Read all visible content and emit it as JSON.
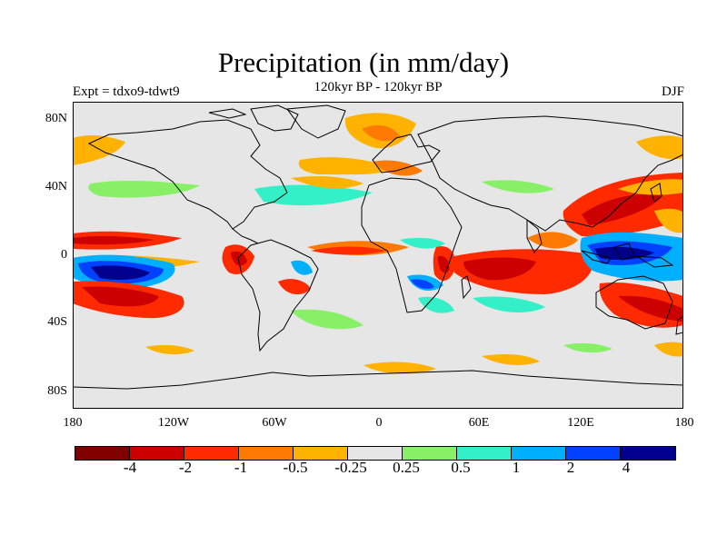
{
  "title": "Precipitation (in mm/day)",
  "subtitle": "120kyr BP - 120kyr BP",
  "experiment": "Expt = tdxo9-tdwt9",
  "season": "DJF",
  "y_ticks": [
    "80N",
    "40N",
    "0",
    "40S",
    "80S"
  ],
  "x_ticks": [
    "180",
    "120W",
    "60W",
    "0",
    "60E",
    "120E",
    "180"
  ],
  "colorbar": {
    "colors": [
      "#800000",
      "#cc0000",
      "#ff2a00",
      "#ff7a00",
      "#ffb300",
      "#e6e6e6",
      "#88f066",
      "#33f0c8",
      "#00b0ff",
      "#0040ff",
      "#00008c"
    ],
    "labels": [
      "-4",
      "-2",
      "-1",
      "-0.5",
      "-0.25",
      "0.25",
      "0.5",
      "1",
      "2",
      "4"
    ]
  },
  "map_colors": {
    "background": "#e6e6e6",
    "coast": "#000000"
  }
}
